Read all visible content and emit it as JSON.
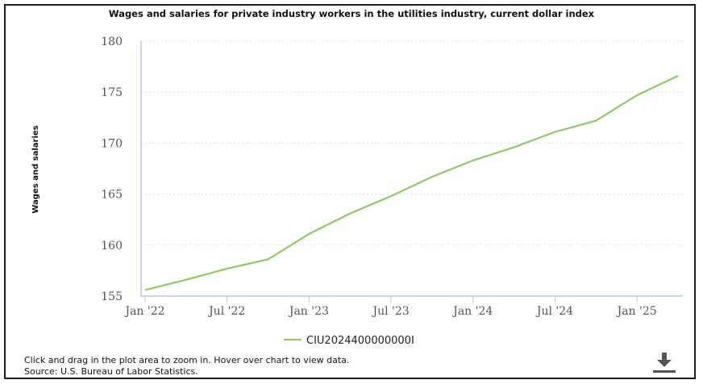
{
  "chart_data": {
    "type": "line",
    "title": "Wages and salaries for private industry workers in the utilities industry, current dollar index",
    "ylabel": "Wages and salaries",
    "xlabel": "",
    "ylim": [
      155,
      180
    ],
    "yticks": [
      155,
      160,
      165,
      170,
      175,
      180
    ],
    "xticks": [
      "Jan '22",
      "Jul '22",
      "Jan '23",
      "Jul '23",
      "Jan '24",
      "Jul '24",
      "Jan '25"
    ],
    "x": [
      "2022-01",
      "2022-04",
      "2022-07",
      "2022-10",
      "2023-01",
      "2023-04",
      "2023-07",
      "2023-10",
      "2024-01",
      "2024-04",
      "2024-07",
      "2024-10",
      "2025-01",
      "2025-04"
    ],
    "series": [
      {
        "name": "CIU2024400000000I",
        "color": "#8fc86b",
        "values": [
          155.6,
          156.6,
          157.7,
          158.6,
          161.1,
          163.1,
          164.8,
          166.7,
          168.3,
          169.6,
          171.1,
          172.2,
          174.7,
          176.6
        ]
      }
    ],
    "grid": true,
    "legend_position": "bottom-center"
  },
  "footer": {
    "instructions": "Click and drag in the plot area to zoom in. Hover over chart to view data.",
    "source": "Source: U.S. Bureau of Labor Statistics."
  },
  "toolbar": {
    "download_icon": "download-icon"
  }
}
